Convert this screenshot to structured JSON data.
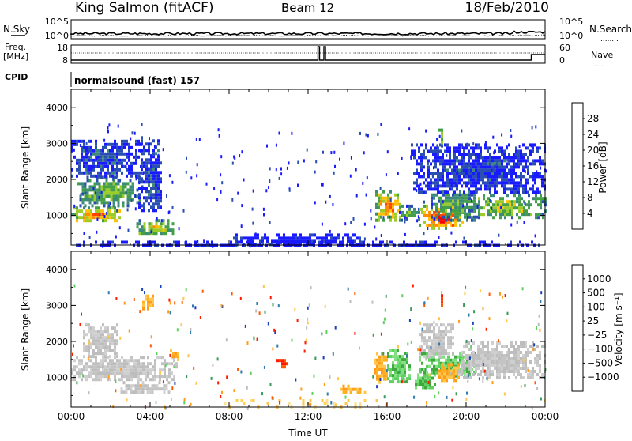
{
  "header": {
    "station": "King Salmon (fitACF)",
    "beam": "Beam 12",
    "date": "18/Feb/2010"
  },
  "aux_panels": {
    "nsky_label": "N.Sky",
    "nsearch_label": "N.Search",
    "nsearch_line": "........",
    "freq_label_1": "Freq.",
    "freq_label_2": "[MHz]",
    "nave_label": "Nave",
    "nave_line": "....",
    "cpid_label": "CPID",
    "cpid_value": "normalsound (fast) 157",
    "left_ticks_top": [
      "10^5",
      "10^0"
    ],
    "right_ticks_top": [
      "10^5",
      "10^0"
    ],
    "left_ticks_freq": [
      "18",
      "8"
    ],
    "right_ticks_nave": [
      "60",
      "0"
    ]
  },
  "chart_data": [
    {
      "type": "heatmap",
      "name": "power",
      "ylabel": "Slant Range [km]",
      "ylim": [
        180,
        4500
      ],
      "yticks": [
        "1000",
        "2000",
        "3000",
        "4000"
      ],
      "colorbar": {
        "label": "Power [dB]",
        "ticks": [
          "4",
          "8",
          "12",
          "16",
          "20",
          "24",
          "28"
        ],
        "colors": [
          "#1a1aff",
          "#2a4fb0",
          "#3d8a7a",
          "#43a047",
          "#9ccc2a",
          "#ffc107",
          "#ff8c00",
          "#ff4500",
          "#ff0000"
        ]
      },
      "blobs": [
        {
          "t0": 0.0,
          "t1": 2.6,
          "r0": 850,
          "r1": 1250,
          "level": 0.7
        },
        {
          "t0": 0.3,
          "t1": 3.6,
          "r0": 1300,
          "r1": 2100,
          "level": 0.45
        },
        {
          "t0": 0.0,
          "t1": 3.5,
          "r0": 2100,
          "r1": 3100,
          "level": 0.15
        },
        {
          "t0": 3.3,
          "t1": 5.2,
          "r0": 500,
          "r1": 900,
          "level": 0.55
        },
        {
          "t0": 3.4,
          "t1": 4.6,
          "r0": 1100,
          "r1": 3200,
          "level": 0.15
        },
        {
          "t0": 15.4,
          "t1": 16.7,
          "r0": 900,
          "r1": 1700,
          "level": 0.72
        },
        {
          "t0": 16.6,
          "t1": 17.6,
          "r0": 900,
          "r1": 1300,
          "level": 0.4
        },
        {
          "t0": 17.6,
          "t1": 19.8,
          "r0": 650,
          "r1": 1300,
          "level": 0.85
        },
        {
          "t0": 18.2,
          "t1": 20.5,
          "r0": 900,
          "r1": 1700,
          "level": 0.4
        },
        {
          "t0": 20.0,
          "t1": 24.0,
          "r0": 950,
          "r1": 1600,
          "level": 0.5
        },
        {
          "t0": 17.2,
          "t1": 24.0,
          "r0": 1600,
          "r1": 3000,
          "level": 0.12
        },
        {
          "t0": 18.6,
          "t1": 18.8,
          "r0": 2900,
          "r1": 3500,
          "level": 0.45
        },
        {
          "t0": 8.2,
          "t1": 14.8,
          "r0": 190,
          "r1": 500,
          "level": 0.05
        },
        {
          "t0": 0.0,
          "t1": 24.0,
          "r0": 190,
          "r1": 300,
          "level": 0.05
        }
      ]
    },
    {
      "type": "heatmap",
      "name": "velocity",
      "ylabel": "Slant Range [km]",
      "xlabel": "Time UT",
      "xlim": [
        0,
        24
      ],
      "xticks": [
        "00:00",
        "04:00",
        "08:00",
        "12:00",
        "16:00",
        "20:00",
        "00:00"
      ],
      "ylim": [
        180,
        4500
      ],
      "yticks": [
        "1000",
        "2000",
        "3000",
        "4000"
      ],
      "colorbar": {
        "label": "Velocity [m s⁻¹]",
        "ticks": [
          "1000",
          "500",
          "100",
          "25",
          "−25",
          "−100",
          "−500",
          "−1000"
        ],
        "colors": [
          "#1a3fbf",
          "#2e7ab0",
          "#3a9a5a",
          "#5fd05f",
          "#bdbdbd",
          "#ffc64a",
          "#ff9d1a",
          "#ff5a00",
          "#ff1a00"
        ]
      },
      "blobs": [
        {
          "t0": 0.0,
          "t1": 5.4,
          "r0": 900,
          "r1": 1600,
          "kind": "gray"
        },
        {
          "t0": 2.5,
          "t1": 5.0,
          "r0": 600,
          "r1": 900,
          "kind": "gray"
        },
        {
          "t0": 0.6,
          "t1": 2.4,
          "r0": 1600,
          "r1": 2500,
          "kind": "gray"
        },
        {
          "t0": 3.6,
          "t1": 4.2,
          "r0": 2800,
          "r1": 3300,
          "kind": "orange"
        },
        {
          "t0": 5.0,
          "t1": 5.4,
          "r0": 1500,
          "r1": 1800,
          "kind": "orange"
        },
        {
          "t0": 10.4,
          "t1": 10.9,
          "r0": 1300,
          "r1": 1600,
          "kind": "red"
        },
        {
          "t0": 15.2,
          "t1": 16.0,
          "r0": 900,
          "r1": 1700,
          "kind": "orange"
        },
        {
          "t0": 16.0,
          "t1": 17.1,
          "r0": 900,
          "r1": 1800,
          "kind": "green"
        },
        {
          "t0": 17.4,
          "t1": 18.4,
          "r0": 700,
          "r1": 1200,
          "kind": "green"
        },
        {
          "t0": 17.6,
          "t1": 20.4,
          "r0": 1000,
          "r1": 1700,
          "kind": "green"
        },
        {
          "t0": 18.6,
          "t1": 19.6,
          "r0": 900,
          "r1": 1400,
          "kind": "orange"
        },
        {
          "t0": 17.6,
          "t1": 19.4,
          "r0": 1600,
          "r1": 2500,
          "kind": "gray"
        },
        {
          "t0": 19.6,
          "t1": 24.0,
          "r0": 1000,
          "r1": 2000,
          "kind": "gray"
        },
        {
          "t0": 18.6,
          "t1": 18.8,
          "r0": 3000,
          "r1": 3400,
          "kind": "red"
        },
        {
          "t0": 13.5,
          "t1": 15.0,
          "r0": 600,
          "r1": 800,
          "kind": "orange"
        },
        {
          "t0": 7.5,
          "t1": 15.5,
          "r0": 190,
          "r1": 400,
          "kind": "yellow"
        }
      ]
    }
  ]
}
